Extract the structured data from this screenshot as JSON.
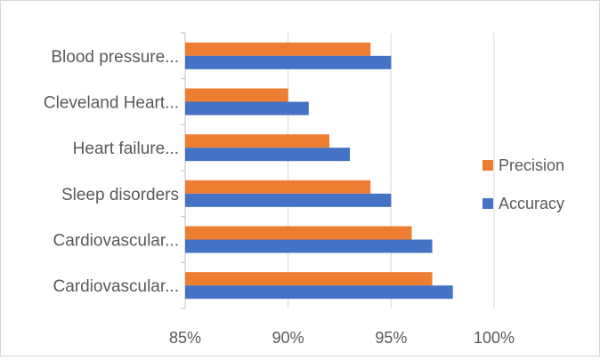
{
  "chart_data": {
    "type": "bar",
    "orientation": "horizontal",
    "categories": [
      "Blood pressure...",
      "Cleveland Heart...",
      "Heart failure...",
      "Sleep disorders",
      "Cardiovascular...",
      "Cardiovascular..."
    ],
    "series": [
      {
        "name": "Precision",
        "color": "#ED7D31",
        "values": [
          94,
          90,
          92,
          94,
          96,
          97
        ]
      },
      {
        "name": "Accuracy",
        "color": "#4472C4",
        "values": [
          95,
          91,
          93,
          95,
          97,
          98
        ]
      }
    ],
    "x_ticks": [
      "85%",
      "90%",
      "95%",
      "100%"
    ],
    "xlim": [
      85,
      100
    ],
    "unit": "%",
    "grid": "vertical",
    "legend_position": "right"
  }
}
